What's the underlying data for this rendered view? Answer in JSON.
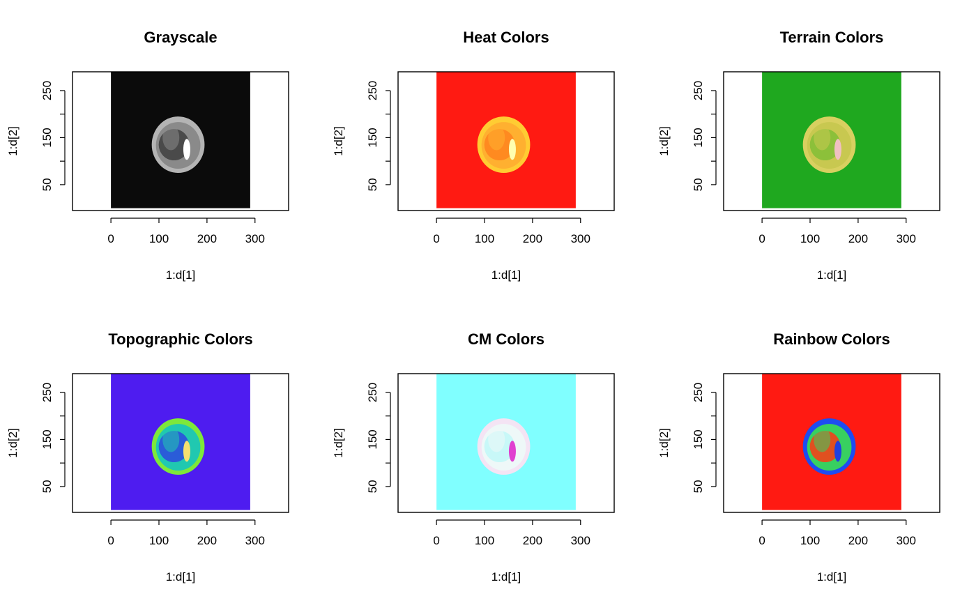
{
  "figure": {
    "layout": "2 rows x 3 columns",
    "background": "#ffffff"
  },
  "chart_data": [
    {
      "type": "heatmap",
      "title": "Grayscale",
      "palette": "grayscale",
      "xlabel": "1:d[1]",
      "ylabel": "1:d[2]",
      "xlim": [
        -80,
        370
      ],
      "ylim": [
        -5,
        290
      ],
      "x_ticks": [
        0,
        100,
        200,
        300
      ],
      "y_ticks": [
        50,
        100,
        150,
        200,
        250
      ],
      "y_tick_labels": [
        "50",
        "",
        "150",
        "",
        "250"
      ],
      "image_extent": {
        "x": [
          0,
          290
        ],
        "y": [
          0,
          290
        ]
      },
      "colors": {
        "background": "#0b0b0b",
        "ring": "#b4b4b4",
        "interior": "#4a4a4a",
        "tissue": "#8a8a8a",
        "hotspot": "#ffffff"
      }
    },
    {
      "type": "heatmap",
      "title": "Heat Colors",
      "palette": "heat",
      "xlabel": "1:d[1]",
      "ylabel": "1:d[2]",
      "xlim": [
        -80,
        370
      ],
      "ylim": [
        -5,
        290
      ],
      "x_ticks": [
        0,
        100,
        200,
        300
      ],
      "y_ticks": [
        50,
        100,
        150,
        200,
        250
      ],
      "y_tick_labels": [
        "50",
        "",
        "150",
        "",
        "250"
      ],
      "image_extent": {
        "x": [
          0,
          290
        ],
        "y": [
          0,
          290
        ]
      },
      "colors": {
        "background": "#ff1a12",
        "ring": "#ffcc33",
        "interior": "#ff8a20",
        "tissue": "#ffb030",
        "hotspot": "#ffffb0"
      }
    },
    {
      "type": "heatmap",
      "title": "Terrain Colors",
      "palette": "terrain",
      "xlabel": "1:d[1]",
      "ylabel": "1:d[2]",
      "xlim": [
        -80,
        370
      ],
      "ylim": [
        -5,
        290
      ],
      "x_ticks": [
        0,
        100,
        200,
        300
      ],
      "y_ticks": [
        50,
        100,
        150,
        200,
        250
      ],
      "y_tick_labels": [
        "50",
        "",
        "150",
        "",
        "250"
      ],
      "image_extent": {
        "x": [
          0,
          290
        ],
        "y": [
          0,
          290
        ]
      },
      "colors": {
        "background": "#1fa81f",
        "ring": "#d8d060",
        "interior": "#8cc03a",
        "tissue": "#c8c850",
        "hotspot": "#f0c0c0"
      }
    },
    {
      "type": "heatmap",
      "title": "Topographic Colors",
      "palette": "topo",
      "xlabel": "1:d[1]",
      "ylabel": "1:d[2]",
      "xlim": [
        -80,
        370
      ],
      "ylim": [
        -5,
        290
      ],
      "x_ticks": [
        0,
        100,
        200,
        300
      ],
      "y_ticks": [
        50,
        100,
        150,
        200,
        250
      ],
      "y_tick_labels": [
        "50",
        "",
        "150",
        "",
        "250"
      ],
      "image_extent": {
        "x": [
          0,
          290
        ],
        "y": [
          0,
          290
        ]
      },
      "colors": {
        "background": "#4e1cf0",
        "ring": "#7ee83a",
        "interior": "#2a5cd8",
        "tissue": "#20c8b0",
        "hotspot": "#f5e070"
      }
    },
    {
      "type": "heatmap",
      "title": "CM Colors",
      "palette": "cm",
      "xlabel": "1:d[1]",
      "ylabel": "1:d[2]",
      "xlim": [
        -80,
        370
      ],
      "ylim": [
        -5,
        290
      ],
      "x_ticks": [
        0,
        100,
        200,
        300
      ],
      "y_ticks": [
        50,
        100,
        150,
        200,
        250
      ],
      "y_tick_labels": [
        "50",
        "",
        "150",
        "",
        "250"
      ],
      "image_extent": {
        "x": [
          0,
          290
        ],
        "y": [
          0,
          290
        ]
      },
      "colors": {
        "background": "#80ffff",
        "ring": "#f4e4f4",
        "interior": "#c8f8f8",
        "tissue": "#eef8f8",
        "hotspot": "#e040d0"
      }
    },
    {
      "type": "heatmap",
      "title": "Rainbow Colors",
      "palette": "rainbow",
      "xlabel": "1:d[1]",
      "ylabel": "1:d[2]",
      "xlim": [
        -80,
        370
      ],
      "ylim": [
        -5,
        290
      ],
      "x_ticks": [
        0,
        100,
        200,
        300
      ],
      "y_ticks": [
        50,
        100,
        150,
        200,
        250
      ],
      "y_tick_labels": [
        "50",
        "",
        "150",
        "",
        "250"
      ],
      "image_extent": {
        "x": [
          0,
          290
        ],
        "y": [
          0,
          290
        ]
      },
      "colors": {
        "background": "#ff1a12",
        "ring": "#1e4cf0",
        "interior": "#e05020",
        "tissue": "#38d060",
        "hotspot": "#2040e0"
      }
    }
  ]
}
